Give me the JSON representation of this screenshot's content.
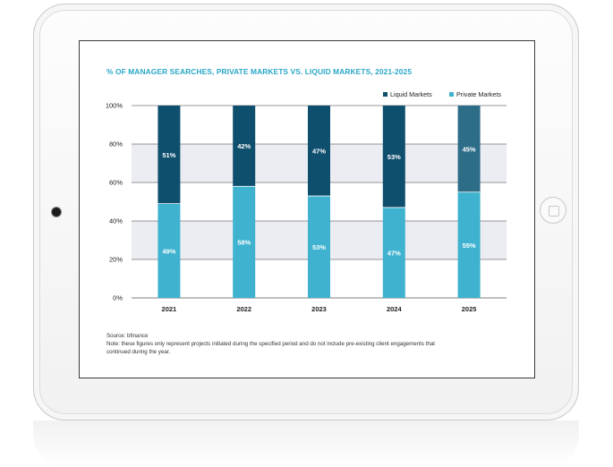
{
  "chart_data": {
    "type": "bar",
    "stacked": true,
    "title": "% OF MANAGER SEARCHES, PRIVATE MARKETS VS. LIQUID MARKETS, 2021-2025",
    "categories": [
      "2021",
      "2022",
      "2023",
      "2024",
      "2025"
    ],
    "series": [
      {
        "name": "Private Markets",
        "values": [
          49,
          58,
          53,
          47,
          55
        ],
        "labels": [
          "49%",
          "58%",
          "53%",
          "47%",
          "55%"
        ]
      },
      {
        "name": "Liquid Markets",
        "values": [
          51,
          42,
          47,
          53,
          45
        ],
        "labels": [
          "51%",
          "42%",
          "47%",
          "53%",
          "45%"
        ]
      }
    ],
    "ylim": [
      0,
      100
    ],
    "y_ticks": [
      "0%",
      "20%",
      "40%",
      "60%",
      "80%",
      "100%"
    ],
    "legend_position": "top-right",
    "colors": {
      "private": "#3fb2cf",
      "liquid": "#0f4f6e",
      "liquid_2025": "#2d6d88",
      "band": "#ecedf2",
      "title": "#2aa7c7"
    }
  },
  "footer": {
    "source": "Source: bfinance",
    "note": "Note: these figures only represent projects initiated during the specified period and do not include pre-existing client engagements that continued during the year."
  }
}
